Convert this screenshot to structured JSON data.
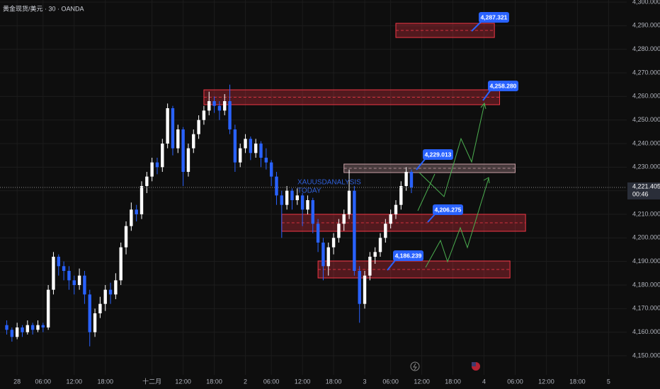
{
  "chart_data": {
    "type": "candlestick",
    "title": "黄金现货/美元 · 30 · OANDA",
    "watermark": [
      "XAUUSDANALYSIS",
      "TODAY"
    ],
    "up_color": "#ffffff",
    "down_color": "#2962ff",
    "grid": true,
    "ylim": [
      4150,
      4300
    ],
    "yticks": [
      {
        "value": 4150,
        "label": "4,150.000"
      },
      {
        "value": 4160,
        "label": "4,160.000"
      },
      {
        "value": 4170,
        "label": "4,170.000"
      },
      {
        "value": 4180,
        "label": "4,180.000"
      },
      {
        "value": 4190,
        "label": "4,190.000"
      },
      {
        "value": 4200,
        "label": "4,200.000"
      },
      {
        "value": 4210,
        "label": "4,210.000"
      },
      {
        "value": 4220,
        "label": "4,220.000"
      },
      {
        "value": 4230,
        "label": "4,230.000"
      },
      {
        "value": 4240,
        "label": "4,240.000"
      },
      {
        "value": 4250,
        "label": "4,250.000"
      },
      {
        "value": 4260,
        "label": "4,260.000"
      },
      {
        "value": 4270,
        "label": "4,270.000"
      },
      {
        "value": 4280,
        "label": "4,280.000"
      },
      {
        "value": 4290,
        "label": "4,290.000"
      },
      {
        "value": 4300,
        "label": "4,300.000"
      }
    ],
    "xlim": [
      -3.3,
      117.5
    ],
    "xticks": [
      {
        "value": 0,
        "label": "28"
      },
      {
        "value": 5,
        "label": "06:00"
      },
      {
        "value": 11,
        "label": "12:00"
      },
      {
        "value": 17,
        "label": "18:00"
      },
      {
        "value": 26,
        "label": "十二月"
      },
      {
        "value": 32,
        "label": "12:00"
      },
      {
        "value": 38,
        "label": "18:00"
      },
      {
        "value": 44,
        "label": "2"
      },
      {
        "value": 49,
        "label": "06:00"
      },
      {
        "value": 55,
        "label": "12:00"
      },
      {
        "value": 61,
        "label": "18:00"
      },
      {
        "value": 67,
        "label": "3"
      },
      {
        "value": 72,
        "label": "06:00"
      },
      {
        "value": 78,
        "label": "12:00"
      },
      {
        "value": 84,
        "label": "18:00"
      },
      {
        "value": 90,
        "label": "4"
      },
      {
        "value": 96,
        "label": "06:00"
      },
      {
        "value": 102,
        "label": "12:00"
      },
      {
        "value": 108,
        "label": "18:00"
      },
      {
        "value": 114,
        "label": "5"
      }
    ],
    "x": [
      -2,
      -1,
      0,
      1,
      2,
      3,
      4,
      5,
      6,
      7,
      8,
      9,
      10,
      11,
      12,
      13,
      14,
      15,
      16,
      17,
      18,
      19,
      20,
      21,
      22,
      23,
      24,
      25,
      26,
      27,
      28,
      29,
      30,
      31,
      32,
      33,
      34,
      35,
      36,
      37,
      38,
      39,
      40,
      41,
      42,
      43,
      44,
      45,
      46,
      47,
      48,
      49,
      50,
      51,
      52,
      53,
      54,
      55,
      56,
      57,
      58,
      59,
      60,
      61,
      62,
      63,
      64,
      65,
      66,
      67,
      68,
      69,
      70,
      71,
      72,
      73,
      74,
      75,
      76
    ],
    "candles": [
      [
        4163,
        4165,
        4159,
        4161
      ],
      [
        4161,
        4162,
        4156,
        4158
      ],
      [
        4158,
        4164,
        4157,
        4162
      ],
      [
        4162,
        4163,
        4158,
        4160
      ],
      [
        4160,
        4165,
        4159,
        4163
      ],
      [
        4163,
        4164,
        4159,
        4161
      ],
      [
        4161,
        4165,
        4160,
        4163
      ],
      [
        4163,
        4164,
        4160,
        4162
      ],
      [
        4162,
        4180,
        4161,
        4178
      ],
      [
        4178,
        4194,
        4176,
        4192
      ],
      [
        4192,
        4193,
        4184,
        4188
      ],
      [
        4188,
        4190,
        4182,
        4186
      ],
      [
        4186,
        4188,
        4178,
        4182
      ],
      [
        4182,
        4184,
        4176,
        4180
      ],
      [
        4180,
        4187,
        4178,
        4184
      ],
      [
        4184,
        4186,
        4172,
        4176
      ],
      [
        4176,
        4178,
        4154,
        4160
      ],
      [
        4160,
        4170,
        4158,
        4168
      ],
      [
        4168,
        4175,
        4166,
        4172
      ],
      [
        4172,
        4180,
        4169,
        4178
      ],
      [
        4178,
        4181,
        4172,
        4176
      ],
      [
        4176,
        4185,
        4174,
        4182
      ],
      [
        4182,
        4198,
        4180,
        4196
      ],
      [
        4196,
        4207,
        4193,
        4205
      ],
      [
        4205,
        4215,
        4203,
        4212
      ],
      [
        4212,
        4214,
        4207,
        4210
      ],
      [
        4210,
        4224,
        4208,
        4222
      ],
      [
        4222,
        4228,
        4219,
        4226
      ],
      [
        4226,
        4234,
        4224,
        4232
      ],
      [
        4232,
        4234,
        4227,
        4230
      ],
      [
        4230,
        4242,
        4228,
        4240
      ],
      [
        4240,
        4257,
        4238,
        4255
      ],
      [
        4255,
        4256,
        4235,
        4238
      ],
      [
        4238,
        4248,
        4236,
        4246
      ],
      [
        4246,
        4247,
        4222,
        4228
      ],
      [
        4228,
        4240,
        4226,
        4238
      ],
      [
        4238,
        4246,
        4236,
        4244
      ],
      [
        4244,
        4252,
        4242,
        4250
      ],
      [
        4250,
        4256,
        4248,
        4254
      ],
      [
        4254,
        4262,
        4252,
        4258
      ],
      [
        4258,
        4260,
        4253,
        4256
      ],
      [
        4256,
        4258,
        4250,
        4254
      ],
      [
        4254,
        4261,
        4252,
        4258
      ],
      [
        4258,
        4265,
        4244,
        4246
      ],
      [
        4246,
        4248,
        4228,
        4232
      ],
      [
        4232,
        4240,
        4230,
        4238
      ],
      [
        4238,
        4244,
        4236,
        4242
      ],
      [
        4242,
        4243,
        4233,
        4236
      ],
      [
        4236,
        4242,
        4234,
        4240
      ],
      [
        4240,
        4241,
        4230,
        4234
      ],
      [
        4234,
        4238,
        4229,
        4232
      ],
      [
        4232,
        4233,
        4222,
        4226
      ],
      [
        4226,
        4228,
        4214,
        4218
      ],
      [
        4218,
        4220,
        4200,
        4214
      ],
      [
        4214,
        4222,
        4212,
        4220
      ],
      [
        4220,
        4221,
        4212,
        4216
      ],
      [
        4216,
        4221,
        4214,
        4218
      ],
      [
        4218,
        4219,
        4205,
        4212
      ],
      [
        4212,
        4218,
        4210,
        4216
      ],
      [
        4216,
        4217,
        4202,
        4206
      ],
      [
        4206,
        4208,
        4194,
        4198
      ],
      [
        4198,
        4200,
        4182,
        4188
      ],
      [
        4188,
        4198,
        4184,
        4196
      ],
      [
        4196,
        4202,
        4193,
        4200
      ],
      [
        4200,
        4208,
        4198,
        4206
      ],
      [
        4206,
        4212,
        4203,
        4210
      ],
      [
        4210,
        4229,
        4208,
        4220
      ],
      [
        4220,
        4222,
        4184,
        4186
      ],
      [
        4186,
        4188,
        4164,
        4172
      ],
      [
        4172,
        4186,
        4170,
        4184
      ],
      [
        4184,
        4194,
        4182,
        4192
      ],
      [
        4192,
        4196,
        4189,
        4194
      ],
      [
        4194,
        4202,
        4192,
        4200
      ],
      [
        4200,
        4208,
        4198,
        4206
      ],
      [
        4206,
        4212,
        4204,
        4210
      ],
      [
        4210,
        4216,
        4208,
        4214
      ],
      [
        4214,
        4224,
        4212,
        4222
      ],
      [
        4222,
        4230,
        4220,
        4228
      ],
      [
        4228,
        4229,
        4219,
        4221.405
      ]
    ],
    "current_price": {
      "value": 4221.405,
      "label": "4,221.405"
    },
    "countdown": "00:46",
    "zones": [
      {
        "low": 4285,
        "high": 4291,
        "start": 73,
        "end": 92,
        "color": "#f23645"
      },
      {
        "low": 4256.5,
        "high": 4262.8,
        "start": 36,
        "end": 93,
        "color": "#f23645"
      },
      {
        "low": 4227.7,
        "high": 4231.3,
        "start": 63,
        "end": 96,
        "color": "#c9a0a6"
      },
      {
        "low": 4202.8,
        "high": 4210,
        "start": 51,
        "end": 98,
        "color": "#f23645"
      },
      {
        "low": 4183,
        "high": 4190.2,
        "start": 58,
        "end": 95,
        "color": "#f23645"
      }
    ],
    "price_labels": [
      {
        "value": 4287.321,
        "label": "4,287.321"
      },
      {
        "value": 4258.28,
        "label": "4,258.280"
      },
      {
        "value": 4229.013,
        "label": "4,229.013"
      },
      {
        "value": 4206.275,
        "label": "4,206.275"
      },
      {
        "value": 4186.239,
        "label": "4,186.239"
      }
    ]
  }
}
